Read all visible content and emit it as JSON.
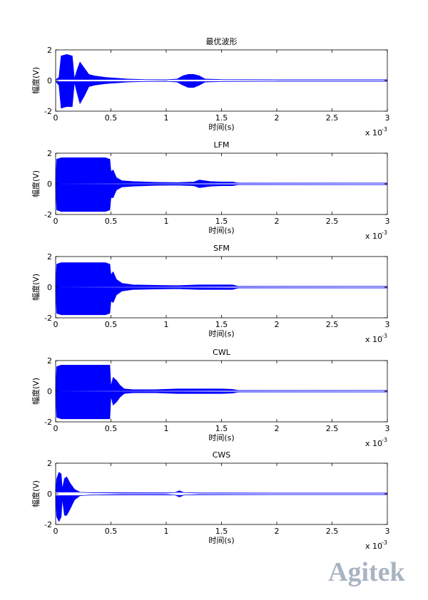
{
  "watermark": "Agitek",
  "chart_data": [
    {
      "type": "area",
      "title": "最优波形",
      "xlabel": "时间(s)",
      "ylabel": "幅度(V)",
      "x_multiplier": "x 10",
      "x_multiplier_exp": "-3",
      "xlim": [
        0,
        3
      ],
      "ylim": [
        -2,
        2
      ],
      "xticks": [
        0,
        0.5,
        1,
        1.5,
        2,
        2.5,
        3
      ],
      "yticks": [
        -2,
        0,
        2
      ],
      "x": [
        0,
        0.03,
        0.05,
        0.1,
        0.15,
        0.17,
        0.19,
        0.22,
        0.26,
        0.3,
        0.35,
        0.45,
        0.55,
        0.65,
        0.8,
        1.0,
        1.1,
        1.15,
        1.2,
        1.25,
        1.3,
        1.35,
        1.5,
        2.0,
        2.5,
        3
      ],
      "series": [
        {
          "color": "#0000ff",
          "values": [
            0.05,
            0.2,
            1.6,
            1.7,
            1.6,
            0.1,
            0.6,
            1.2,
            0.8,
            0.4,
            0.3,
            0.2,
            0.15,
            0.1,
            0.06,
            0.05,
            0.1,
            0.3,
            0.4,
            0.4,
            0.3,
            0.1,
            0.06,
            0.05,
            0.05,
            0.05
          ]
        },
        {
          "color": "#0000ff",
          "values": [
            -0.05,
            -0.3,
            -1.8,
            -1.7,
            -1.7,
            -0.1,
            -0.7,
            -1.5,
            -1,
            -0.4,
            -0.3,
            -0.2,
            -0.15,
            -0.1,
            -0.06,
            -0.05,
            -0.1,
            -0.3,
            -0.45,
            -0.45,
            -0.3,
            -0.1,
            -0.06,
            -0.05,
            -0.05,
            -0.05
          ]
        }
      ]
    },
    {
      "type": "area",
      "title": "LFM",
      "xlabel": "时间(s)",
      "ylabel": "幅度(V)",
      "x_multiplier": "x 10",
      "x_multiplier_exp": "-3",
      "xlim": [
        0,
        3
      ],
      "ylim": [
        -2,
        2
      ],
      "xticks": [
        0,
        0.5,
        1,
        1.5,
        2,
        2.5,
        3
      ],
      "yticks": [
        -2,
        0,
        2
      ],
      "x": [
        0,
        0.01,
        0.05,
        0.25,
        0.45,
        0.49,
        0.5,
        0.52,
        0.55,
        0.6,
        0.7,
        0.9,
        1.1,
        1.25,
        1.3,
        1.4,
        1.5,
        1.6,
        1.65,
        2,
        2.5,
        3
      ],
      "series": [
        {
          "color": "#0000ff",
          "values": [
            0,
            1.6,
            1.7,
            1.7,
            1.7,
            1.6,
            0.8,
            0.9,
            0.4,
            0.2,
            0.15,
            0.1,
            0.08,
            0.12,
            0.25,
            0.15,
            0.12,
            0.12,
            0.05,
            0.05,
            0.05,
            0.05
          ]
        },
        {
          "color": "#0000ff",
          "values": [
            0,
            -1.7,
            -1.8,
            -1.8,
            -1.8,
            -1.7,
            -0.9,
            -0.9,
            -0.4,
            -0.2,
            -0.15,
            -0.1,
            -0.08,
            -0.12,
            -0.25,
            -0.15,
            -0.12,
            -0.12,
            -0.05,
            -0.05,
            -0.05,
            -0.05
          ]
        }
      ]
    },
    {
      "type": "area",
      "title": "SFM",
      "xlabel": "时间(s)",
      "ylabel": "幅度(V)",
      "x_multiplier": "x 10",
      "x_multiplier_exp": "-3",
      "xlim": [
        0,
        3
      ],
      "ylim": [
        -2,
        2
      ],
      "xticks": [
        0,
        0.5,
        1,
        1.5,
        2,
        2.5,
        3
      ],
      "yticks": [
        -2,
        0,
        2
      ],
      "x": [
        0,
        0.01,
        0.05,
        0.25,
        0.45,
        0.49,
        0.5,
        0.52,
        0.55,
        0.6,
        0.7,
        0.9,
        1.1,
        1.3,
        1.5,
        1.6,
        1.65,
        2,
        2.5,
        3
      ],
      "series": [
        {
          "color": "#0000ff",
          "values": [
            0,
            1.5,
            1.6,
            1.6,
            1.6,
            1.5,
            0.8,
            1.0,
            0.5,
            0.25,
            0.15,
            0.12,
            0.1,
            0.15,
            0.15,
            0.15,
            0.05,
            0.05,
            0.05,
            0.05
          ]
        },
        {
          "color": "#0000ff",
          "values": [
            0,
            -1.7,
            -1.8,
            -1.8,
            -1.8,
            -1.7,
            -0.9,
            -1.0,
            -0.5,
            -0.25,
            -0.15,
            -0.12,
            -0.1,
            -0.15,
            -0.15,
            -0.15,
            -0.05,
            -0.05,
            -0.05,
            -0.05
          ]
        }
      ]
    },
    {
      "type": "area",
      "title": "CWL",
      "xlabel": "时间(s)",
      "ylabel": "幅度(V)",
      "x_multiplier": "x 10",
      "x_multiplier_exp": "-3",
      "xlim": [
        0,
        3
      ],
      "ylim": [
        -2,
        2
      ],
      "xticks": [
        0,
        0.5,
        1,
        1.5,
        2,
        2.5,
        3
      ],
      "yticks": [
        -2,
        0,
        2
      ],
      "x": [
        0,
        0.01,
        0.05,
        0.25,
        0.45,
        0.49,
        0.5,
        0.52,
        0.55,
        0.58,
        0.62,
        0.7,
        0.9,
        1.1,
        1.3,
        1.5,
        1.6,
        1.65,
        2,
        2.5,
        3
      ],
      "series": [
        {
          "color": "#0000ff",
          "values": [
            0,
            1.6,
            1.7,
            1.7,
            1.7,
            1.7,
            0.3,
            0.9,
            0.7,
            0.4,
            0.15,
            0.1,
            0.1,
            0.15,
            0.15,
            0.15,
            0.12,
            0.05,
            0.05,
            0.05,
            0.05
          ]
        },
        {
          "color": "#0000ff",
          "values": [
            0,
            -1.7,
            -1.8,
            -1.8,
            -1.8,
            -1.8,
            -0.3,
            -0.9,
            -0.7,
            -0.4,
            -0.15,
            -0.1,
            -0.1,
            -0.15,
            -0.15,
            -0.15,
            -0.12,
            -0.05,
            -0.05,
            -0.05,
            -0.05
          ]
        }
      ]
    },
    {
      "type": "area",
      "title": "CWS",
      "xlabel": "时间(s)",
      "ylabel": "幅度(V)",
      "x_multiplier": "x 10",
      "x_multiplier_exp": "-3",
      "xlim": [
        0,
        3
      ],
      "ylim": [
        -2,
        2
      ],
      "xticks": [
        0,
        0.5,
        1,
        1.5,
        2,
        2.5,
        3
      ],
      "yticks": [
        -2,
        0,
        2
      ],
      "x": [
        0,
        0.01,
        0.03,
        0.05,
        0.06,
        0.08,
        0.1,
        0.13,
        0.17,
        0.22,
        0.3,
        0.6,
        1.0,
        1.08,
        1.12,
        1.16,
        1.3,
        2,
        3
      ],
      "series": [
        {
          "color": "#0000ff",
          "values": [
            0.1,
            1.0,
            1.4,
            1.3,
            0.3,
            1.0,
            1.1,
            0.7,
            0.3,
            0.1,
            0.08,
            0.05,
            0.05,
            0.08,
            0.2,
            0.08,
            0.05,
            0.05,
            0.05
          ]
        },
        {
          "color": "#0000ff",
          "values": [
            -0.1,
            -1.5,
            -1.8,
            -1.5,
            -0.3,
            -1.4,
            -1.4,
            -1,
            -0.4,
            -0.12,
            -0.08,
            -0.05,
            -0.05,
            -0.08,
            -0.2,
            -0.08,
            -0.05,
            -0.05,
            -0.05
          ]
        }
      ]
    }
  ]
}
